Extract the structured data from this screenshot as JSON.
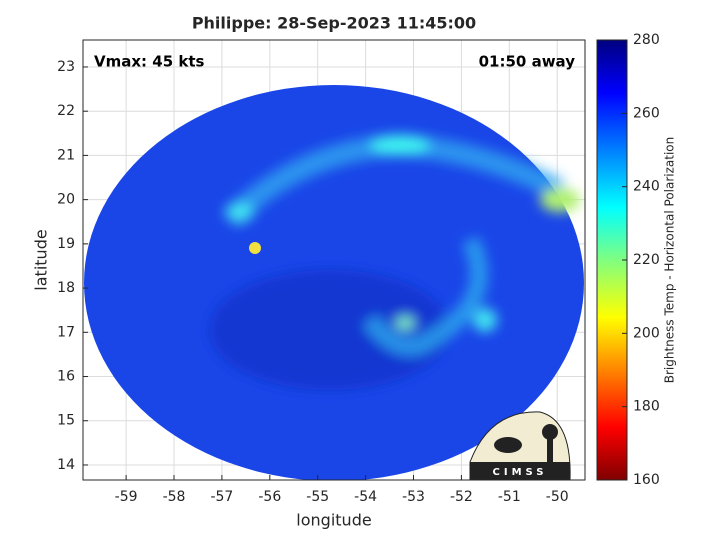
{
  "chart_data": {
    "type": "map",
    "title": "Philippe: 28-Sep-2023 11:45:00",
    "annotations": [
      "Vmax: 45 kts",
      "01:50 away"
    ],
    "xlabel": "longitude",
    "ylabel": "latitude",
    "xlim": [
      -59.9,
      -49.42
    ],
    "xticks": [
      -59,
      -58,
      -57,
      -56,
      -55,
      -54,
      -53,
      -52,
      -51,
      -50
    ],
    "ylim": [
      13.66,
      23.61
    ],
    "yticks": [
      14,
      15,
      16,
      17,
      18,
      19,
      20,
      21,
      22,
      23
    ],
    "grid": true,
    "colorbar": {
      "label": "Brightness Temp - Horizontal Polarization",
      "lim": [
        160,
        280
      ],
      "ticks": [
        160,
        180,
        200,
        220,
        240,
        260,
        280
      ]
    },
    "logo": "CIMSS"
  }
}
